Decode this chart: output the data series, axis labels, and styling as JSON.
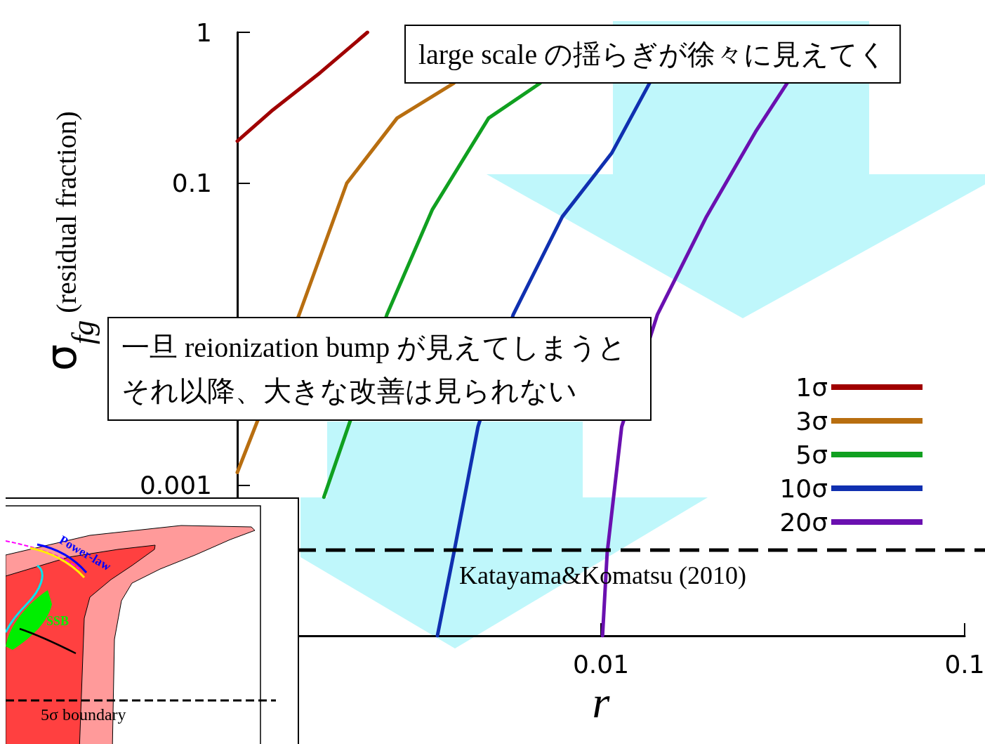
{
  "chart_data": [
    {
      "type": "line",
      "xlabel": "r",
      "ylabel": "σ$_{fg}$  (residual fraction)",
      "log": "xy",
      "grid": false,
      "marker": "none",
      "legend": "right",
      "xlim": [
        0.001,
        0.1
      ],
      "xticks": [
        0.01,
        0.1
      ],
      "ylim": [
        0.0001,
        1
      ],
      "yticks": [
        {
          "value": 0.0001,
          "label": null
        },
        0.001,
        0.1,
        1
      ],
      "series": [
        {
          "name": "1σ",
          "color": "#a00000",
          "x": [
            0.001,
            0.00124,
            0.00169,
            0.00228
          ],
          "values": [
            0.19,
            0.3,
            0.54,
            1
          ]
        },
        {
          "name": "3σ",
          "color": "#b86e10",
          "x": [
            0.001,
            0.00148,
            0.002,
            0.00275,
            0.00394
          ],
          "values": [
            0.00121,
            0.0135,
            0.1,
            0.27,
            0.46
          ]
        },
        {
          "name": "5σ",
          "color": "#10a020",
          "x": [
            0.00173,
            0.00258,
            0.00344,
            0.00491,
            0.0068
          ],
          "values": [
            0.00083,
            0.0135,
            0.067,
            0.27,
            0.46
          ]
        },
        {
          "name": "10σ",
          "color": "#1030b0",
          "x": [
            0.00355,
            0.00394,
            0.00459,
            0.00574,
            0.00783,
            0.0107,
            0.0136
          ],
          "values": [
            0.0001,
            0.000354,
            0.00243,
            0.0135,
            0.06,
            0.158,
            0.46
          ]
        },
        {
          "name": "20σ",
          "color": "#6a10b0",
          "x": [
            0.0101,
            0.0104,
            0.0114,
            0.0143,
            0.0195,
            0.0266,
            0.0325
          ],
          "values": [
            0.0001,
            0.000354,
            0.00243,
            0.0135,
            0.06,
            0.219,
            0.46
          ]
        }
      ],
      "ref_lines": [
        {
          "axis": "y",
          "value": 0.00037,
          "label": "Katayama&Komatsu (2010)",
          "color": "#000000",
          "line_style": "dashed"
        }
      ],
      "annotations": [
        "large scale の揺らぎが徐々に見えてく",
        "一旦 reionization bump が見えてしまうとそれ以降、大きな改善は見られない"
      ]
    },
    {
      "type": "other",
      "annotations": [
        "Power-law",
        "SSB",
        "5σ boundary"
      ]
    }
  ]
}
